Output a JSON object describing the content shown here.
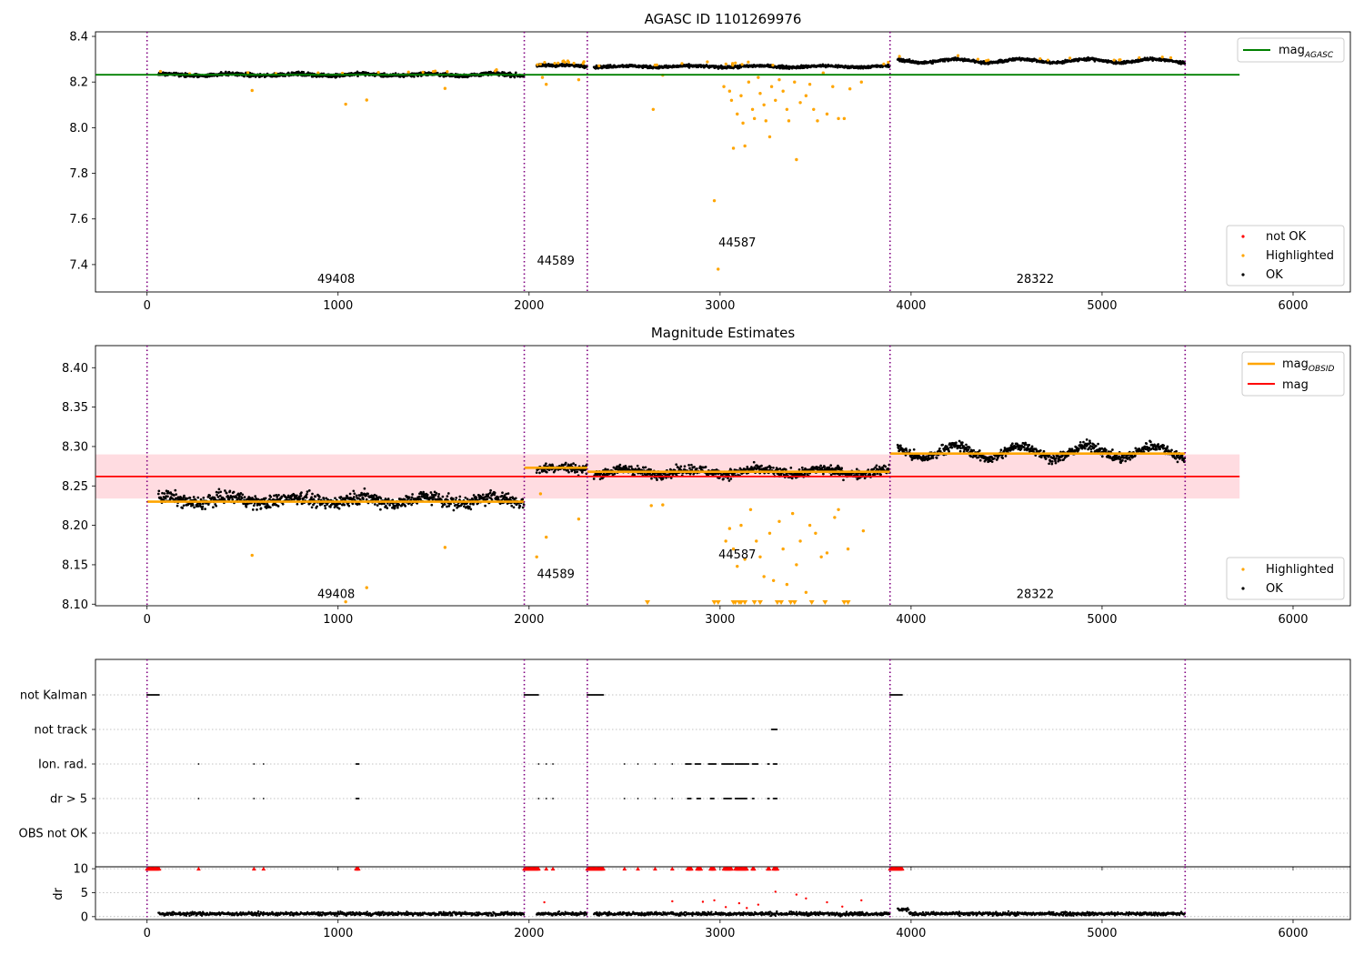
{
  "colors": {
    "ok": "#000000",
    "highlighted": "#ffa500",
    "not_ok": "#ff0000",
    "mag_agasc": "#008000",
    "mag": "#ff0000",
    "mag_band": "#ffc0c8",
    "obs_divider": "#800080",
    "grid": "#b0b0b0"
  },
  "chart_data": [
    {
      "type": "scatter",
      "title": "AGASC ID 1101269976",
      "xlabel": "",
      "ylabel": "",
      "xlim": [
        -270,
        6300
      ],
      "ylim": [
        7.28,
        8.42
      ],
      "xticks": [
        "0",
        "1000",
        "2000",
        "3000",
        "4000",
        "5000",
        "6000"
      ],
      "yticks": [
        "7.4",
        "7.6",
        "7.8",
        "8.0",
        "8.2",
        "8.4"
      ],
      "obs_boundaries": [
        0,
        1975,
        2305,
        3890,
        5435
      ],
      "obsids": [
        {
          "label": "49408",
          "x": 990,
          "y": 7.32
        },
        {
          "label": "44589",
          "x": 2140,
          "y": 7.4
        },
        {
          "label": "44587",
          "x": 3090,
          "y": 7.48
        },
        {
          "label": "28322",
          "x": 4650,
          "y": 7.32
        }
      ],
      "mag_agasc": {
        "value": 8.232,
        "x_range": [
          -270,
          5720
        ]
      },
      "segments": [
        {
          "x0": 60,
          "x1": 1975,
          "level": 8.232,
          "noise": 0.008,
          "wave": 0.004
        },
        {
          "x0": 2040,
          "x1": 2305,
          "level": 8.272,
          "noise": 0.006,
          "wave": 0.002
        },
        {
          "x0": 2340,
          "x1": 3890,
          "level": 8.268,
          "noise": 0.006,
          "wave": 0.003
        },
        {
          "x0": 3930,
          "x1": 5435,
          "level": 8.293,
          "noise": 0.006,
          "wave": 0.008
        }
      ],
      "highlighted_points": [
        [
          550,
          8.163
        ],
        [
          1040,
          8.103
        ],
        [
          1150,
          8.121
        ],
        [
          1560,
          8.172
        ],
        [
          2070,
          8.22
        ],
        [
          2090,
          8.19
        ],
        [
          2260,
          8.21
        ],
        [
          2650,
          8.08
        ],
        [
          2700,
          8.23
        ],
        [
          2970,
          7.68
        ],
        [
          2990,
          7.38
        ],
        [
          3020,
          8.18
        ],
        [
          3050,
          8.16
        ],
        [
          3060,
          8.12
        ],
        [
          3070,
          7.91
        ],
        [
          3090,
          8.06
        ],
        [
          3110,
          8.14
        ],
        [
          3120,
          8.02
        ],
        [
          3130,
          7.92
        ],
        [
          3150,
          8.2
        ],
        [
          3170,
          8.08
        ],
        [
          3180,
          8.04
        ],
        [
          3200,
          8.22
        ],
        [
          3210,
          8.15
        ],
        [
          3230,
          8.1
        ],
        [
          3240,
          8.03
        ],
        [
          3260,
          7.96
        ],
        [
          3270,
          8.18
        ],
        [
          3290,
          8.12
        ],
        [
          3310,
          8.21
        ],
        [
          3330,
          8.16
        ],
        [
          3350,
          8.08
        ],
        [
          3360,
          8.03
        ],
        [
          3390,
          8.2
        ],
        [
          3400,
          7.86
        ],
        [
          3420,
          8.11
        ],
        [
          3450,
          8.14
        ],
        [
          3470,
          8.19
        ],
        [
          3490,
          8.08
        ],
        [
          3510,
          8.03
        ],
        [
          3540,
          8.24
        ],
        [
          3560,
          8.06
        ],
        [
          3590,
          8.18
        ],
        [
          3620,
          8.04
        ],
        [
          3650,
          8.04
        ],
        [
          3680,
          8.17
        ],
        [
          3740,
          8.2
        ]
      ],
      "legend": {
        "position": "lower right",
        "entries": [
          "not OK",
          "Highlighted",
          "OK"
        ]
      },
      "legend_line": {
        "position": "upper right",
        "label": "mag",
        "subscript": "AGASC"
      }
    },
    {
      "type": "scatter",
      "title": "Magnitude Estimates",
      "xlabel": "",
      "ylabel": "",
      "xlim": [
        -270,
        6300
      ],
      "ylim": [
        8.098,
        8.428
      ],
      "xticks": [
        "0",
        "1000",
        "2000",
        "3000",
        "4000",
        "5000",
        "6000"
      ],
      "yticks": [
        "8.10",
        "8.15",
        "8.20",
        "8.25",
        "8.30",
        "8.35",
        "8.40"
      ],
      "obs_boundaries": [
        0,
        1975,
        2305,
        3890,
        5435
      ],
      "obsids": [
        {
          "label": "49408",
          "x": 990,
          "y": 8.108
        },
        {
          "label": "44589",
          "x": 2140,
          "y": 8.133
        },
        {
          "label": "44587",
          "x": 3090,
          "y": 8.158
        },
        {
          "label": "28322",
          "x": 4650,
          "y": 8.108
        }
      ],
      "mag": {
        "value": 8.262,
        "band": [
          8.234,
          8.29
        ],
        "x_range": [
          -270,
          5720
        ]
      },
      "mag_obsid": [
        {
          "x0": 0,
          "x1": 1975,
          "value": 8.23
        },
        {
          "x0": 1975,
          "x1": 2305,
          "value": 8.273
        },
        {
          "x0": 2305,
          "x1": 3890,
          "value": 8.268
        },
        {
          "x0": 3890,
          "x1": 5435,
          "value": 8.291
        }
      ],
      "highlighted_points": [
        [
          550,
          8.162
        ],
        [
          1040,
          8.103
        ],
        [
          1150,
          8.121
        ],
        [
          1560,
          8.172
        ],
        [
          2040,
          8.16
        ],
        [
          2060,
          8.24
        ],
        [
          2090,
          8.185
        ],
        [
          2260,
          8.208
        ],
        [
          2640,
          8.225
        ],
        [
          2700,
          8.226
        ],
        [
          3030,
          8.18
        ],
        [
          3050,
          8.196
        ],
        [
          3070,
          8.17
        ],
        [
          3090,
          8.148
        ],
        [
          3110,
          8.2
        ],
        [
          3130,
          8.157
        ],
        [
          3160,
          8.22
        ],
        [
          3190,
          8.18
        ],
        [
          3210,
          8.16
        ],
        [
          3230,
          8.135
        ],
        [
          3260,
          8.19
        ],
        [
          3280,
          8.13
        ],
        [
          3310,
          8.205
        ],
        [
          3330,
          8.17
        ],
        [
          3350,
          8.125
        ],
        [
          3380,
          8.215
        ],
        [
          3400,
          8.15
        ],
        [
          3420,
          8.18
        ],
        [
          3450,
          8.115
        ],
        [
          3470,
          8.2
        ],
        [
          3500,
          8.19
        ],
        [
          3530,
          8.16
        ],
        [
          3560,
          8.165
        ],
        [
          3600,
          8.21
        ],
        [
          3620,
          8.22
        ],
        [
          3670,
          8.17
        ],
        [
          3750,
          8.193
        ]
      ],
      "clipped_points_x": [
        2620,
        2970,
        2990,
        3070,
        3080,
        3100,
        3110,
        3130,
        3180,
        3210,
        3300,
        3320,
        3370,
        3390,
        3480,
        3550,
        3650,
        3670
      ],
      "legend": {
        "position": "lower right",
        "entries": [
          "Highlighted",
          "OK"
        ]
      },
      "legend_line": {
        "position": "upper right",
        "entries": [
          {
            "label": "mag",
            "subscript": "OBSID"
          },
          {
            "label": "mag",
            "subscript": ""
          }
        ]
      }
    },
    {
      "type": "scatter",
      "title": "",
      "xlabel": "",
      "ylabel": "",
      "xlim": [
        -270,
        6300
      ],
      "xticks": [
        "0",
        "1000",
        "2000",
        "3000",
        "4000",
        "5000",
        "6000"
      ],
      "categories": [
        "not Kalman",
        "not track",
        "Ion. rad.",
        "dr > 5",
        "OBS not OK"
      ],
      "obs_boundaries": [
        0,
        1975,
        2305,
        3890,
        5435
      ],
      "flags": {
        "not Kalman": [
          [
            0,
            65
          ],
          [
            1975,
            2050
          ],
          [
            2305,
            2390
          ],
          [
            3890,
            3955
          ]
        ],
        "not track": [
          [
            3270,
            3300
          ]
        ],
        "Ion. rad.": [
          [
            270,
            270
          ],
          [
            560,
            560
          ],
          [
            610,
            610
          ],
          [
            1095,
            1110
          ],
          [
            2050,
            2050
          ],
          [
            2090,
            2090
          ],
          [
            2125,
            2125
          ],
          [
            2500,
            2500
          ],
          [
            2570,
            2570
          ],
          [
            2660,
            2660
          ],
          [
            2750,
            2750
          ],
          [
            2820,
            2850
          ],
          [
            2870,
            2900
          ],
          [
            2940,
            2980
          ],
          [
            3010,
            3070
          ],
          [
            3080,
            3150
          ],
          [
            3170,
            3200
          ],
          [
            3250,
            3260
          ],
          [
            3280,
            3300
          ]
        ],
        "dr > 5": [
          [
            270,
            270
          ],
          [
            560,
            560
          ],
          [
            610,
            610
          ],
          [
            1095,
            1110
          ],
          [
            2050,
            2050
          ],
          [
            2090,
            2090
          ],
          [
            2125,
            2125
          ],
          [
            2500,
            2500
          ],
          [
            2570,
            2570
          ],
          [
            2660,
            2660
          ],
          [
            2750,
            2750
          ],
          [
            2830,
            2850
          ],
          [
            2880,
            2900
          ],
          [
            2950,
            2970
          ],
          [
            3020,
            3060
          ],
          [
            3080,
            3140
          ],
          [
            3170,
            3180
          ],
          [
            3250,
            3260
          ],
          [
            3280,
            3300
          ]
        ],
        "OBS not OK": []
      }
    },
    {
      "type": "scatter",
      "title": "",
      "xlabel": "",
      "ylabel": "dr",
      "xlim": [
        -270,
        6300
      ],
      "ylim": [
        -0.6,
        10.4
      ],
      "yticks": [
        "0",
        "5",
        "10"
      ],
      "xticks": [
        "0",
        "1000",
        "2000",
        "3000",
        "4000",
        "5000",
        "6000"
      ],
      "obs_boundaries": [
        0,
        1975,
        2305,
        3890,
        5435
      ],
      "clipped_at": 10,
      "outlier_points": [
        [
          2080,
          3.0
        ],
        [
          2750,
          3.2
        ],
        [
          2910,
          3.1
        ],
        [
          2970,
          3.4
        ],
        [
          3030,
          2.0
        ],
        [
          3100,
          2.8
        ],
        [
          3140,
          1.8
        ],
        [
          3200,
          2.5
        ],
        [
          3290,
          5.2
        ],
        [
          3400,
          4.6
        ],
        [
          3450,
          3.8
        ],
        [
          3560,
          3.0
        ],
        [
          3640,
          2.1
        ],
        [
          3740,
          3.4
        ]
      ]
    }
  ]
}
